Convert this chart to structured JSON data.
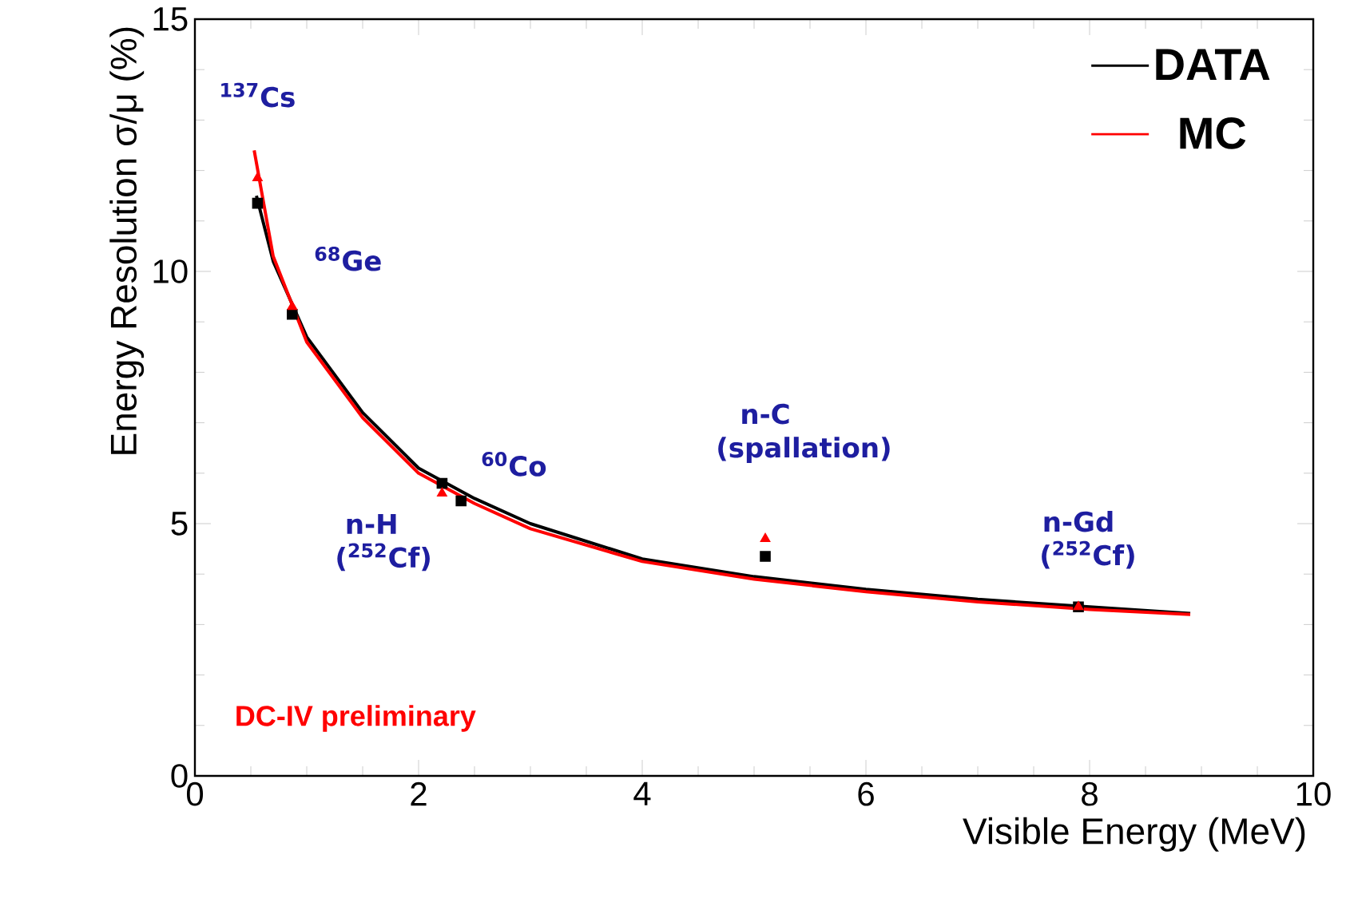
{
  "chart_data": {
    "type": "line",
    "xlabel": "Visible Energy (MeV)",
    "ylabel": "Energy Resolution σ/μ (%)",
    "xlim": [
      0,
      10
    ],
    "ylim": [
      0,
      15
    ],
    "xticks": [
      0,
      2,
      4,
      6,
      8,
      10
    ],
    "yticks": [
      0,
      5,
      10,
      15
    ],
    "legend": "top right",
    "grid": false,
    "series": [
      {
        "name": "DATA",
        "color": "#000000",
        "x": [
          0.55,
          0.7,
          1,
          1.5,
          2,
          2.5,
          3,
          4,
          5,
          6,
          7,
          8,
          8.9
        ],
        "values": [
          11.5,
          10.2,
          8.7,
          7.2,
          6.1,
          5.5,
          5.0,
          4.3,
          3.95,
          3.7,
          3.5,
          3.35,
          3.22
        ]
      },
      {
        "name": "MC",
        "color": "#ff0000",
        "x": [
          0.53,
          0.7,
          1,
          1.5,
          2,
          2.5,
          3,
          4,
          5,
          6,
          7,
          8,
          8.9
        ],
        "values": [
          12.4,
          10.3,
          8.6,
          7.1,
          6.0,
          5.4,
          4.9,
          4.25,
          3.9,
          3.65,
          3.45,
          3.3,
          3.2
        ]
      },
      {
        "type": "scatter",
        "marker": "square",
        "color": "#000000",
        "x": [
          0.56,
          0.87,
          2.21,
          2.38,
          5.1,
          7.9
        ],
        "values": [
          11.35,
          9.15,
          5.8,
          5.45,
          4.35,
          3.35
        ]
      },
      {
        "type": "scatter",
        "marker": "triangle",
        "color": "#ff0000",
        "x": [
          0.56,
          0.87,
          2.21,
          5.1,
          7.9
        ],
        "values": [
          11.85,
          9.3,
          5.6,
          4.7,
          3.35
        ]
      }
    ],
    "annotations": [
      {
        "text": "$^{137}$Cs",
        "x": 0.56,
        "y": 11.85
      },
      {
        "text": "$^{68}$Ge",
        "x": 0.87,
        "y": 9.3
      },
      {
        "text": "$^{60}$Co",
        "x": 2.21,
        "y": 5.8
      },
      {
        "text": "n-H ($^{252}$Cf)",
        "x": 2.38,
        "y": 5.45
      },
      {
        "text": "n-C (spallation)",
        "x": 5.1,
        "y": 4.7
      },
      {
        "text": "n-Gd ($^{252}$Cf)",
        "x": 7.9,
        "y": 3.35
      },
      "DC-IV preliminary"
    ]
  }
}
